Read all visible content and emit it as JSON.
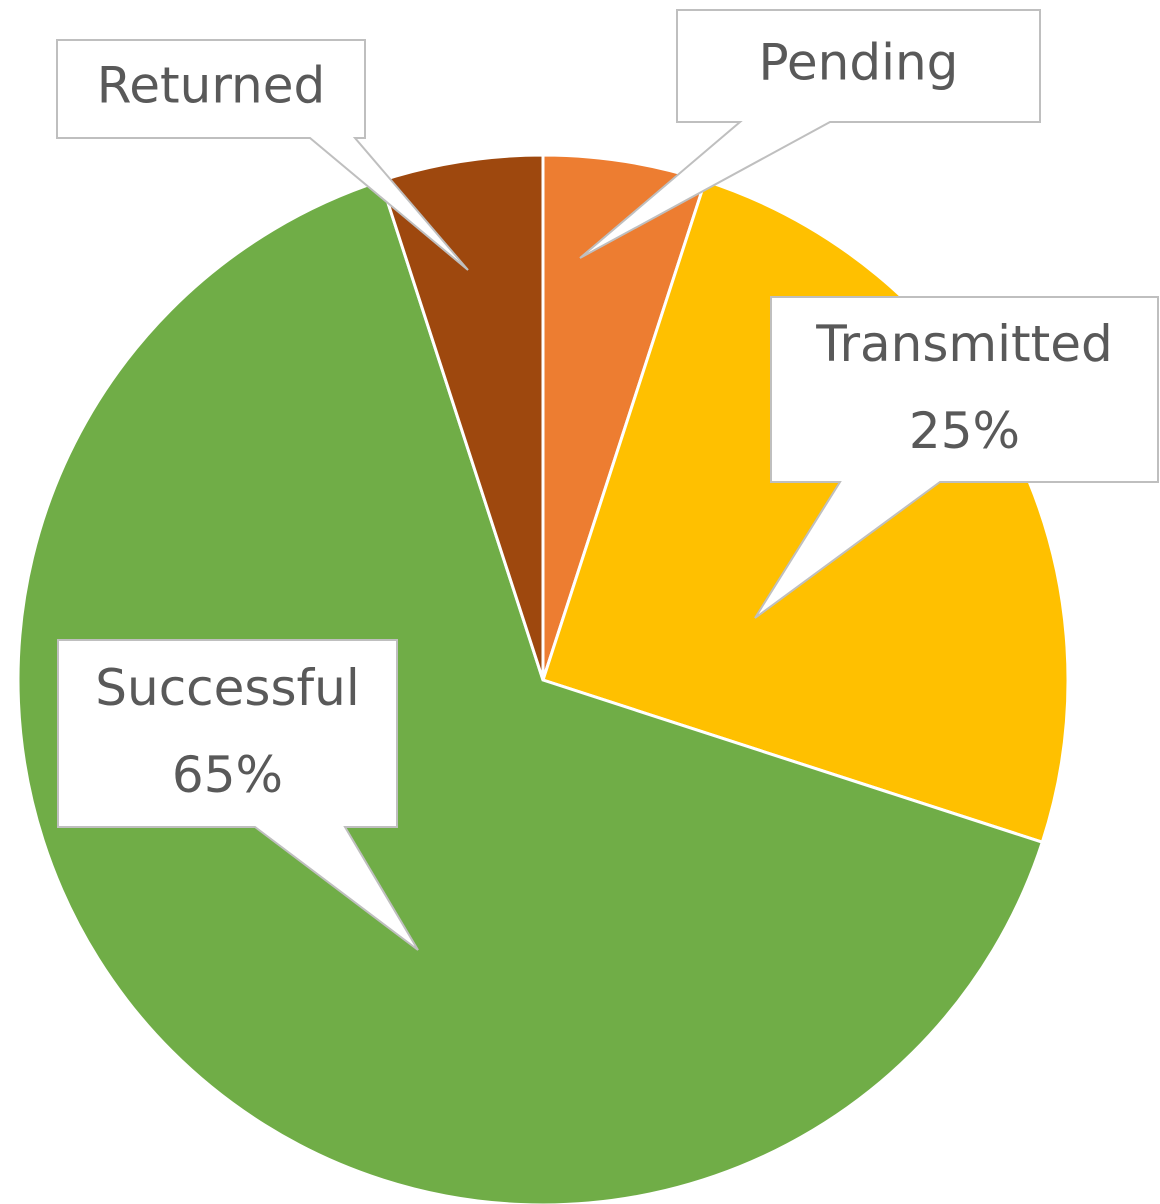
{
  "chart_data": {
    "type": "pie",
    "categories": [
      "Pending",
      "Transmitted",
      "Successful",
      "Returned"
    ],
    "values": [
      5,
      25,
      65,
      5
    ],
    "value_labels": [
      null,
      "25%",
      "65%",
      null
    ],
    "colors": [
      "#ed7d31",
      "#ffc000",
      "#70ad47",
      "#9e480e"
    ]
  }
}
